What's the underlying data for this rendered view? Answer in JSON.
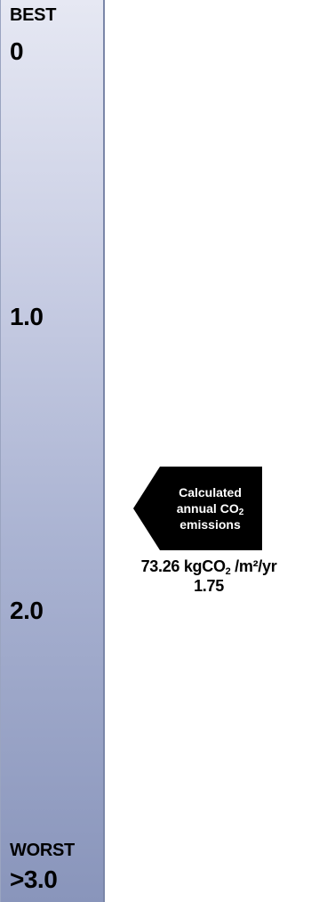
{
  "chart_data": {
    "type": "gauge",
    "scale": {
      "min": 0,
      "max": 3.0,
      "best_label": "BEST",
      "worst_label": "WORST",
      "tick_labels": [
        "0",
        "1.0",
        "2.0",
        ">3.0"
      ],
      "tick_values": [
        0,
        1.0,
        2.0,
        3.0
      ]
    },
    "indicator": {
      "line1": "Calculated",
      "line2_prefix": "annual CO",
      "line2_sub": "2",
      "line3": "emissions",
      "value": 1.75,
      "value_label": "1.75",
      "emissions_value": "73.26",
      "emissions_unit_prefix": "kgCO",
      "emissions_unit_sub": "2",
      "emissions_unit_suffix": " /m²/yr"
    }
  }
}
